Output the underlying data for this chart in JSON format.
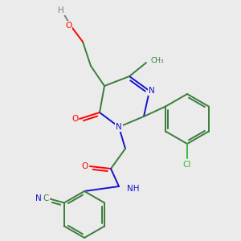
{
  "background_color": "#ebebeb",
  "colors": {
    "C": "#3a7d3a",
    "N": "#1414cd",
    "O": "#ff0000",
    "H": "#808080",
    "Cl": "#3cb83c"
  },
  "figsize": [
    3.0,
    3.0
  ],
  "dpi": 100
}
